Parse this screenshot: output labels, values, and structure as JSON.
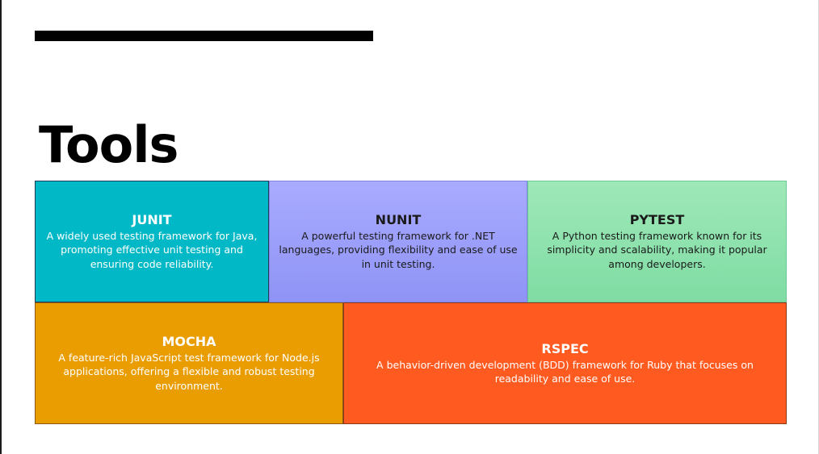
{
  "slide": {
    "title": "Tools"
  },
  "cards": [
    {
      "title": "JUNIT",
      "description": "A widely used testing framework for Java, promoting effective unit testing and ensuring code reliability.",
      "color": "#00b8c6"
    },
    {
      "title": "NUNIT",
      "description": "A powerful testing framework for .NET languages, providing flexibility and ease of use in unit testing.",
      "color": "#a9abff"
    },
    {
      "title": "PYTEST",
      "description": "A Python testing framework known for its simplicity and scalability, making it popular among developers.",
      "color": "#9fe8b8"
    },
    {
      "title": "MOCHA",
      "description": "A feature-rich JavaScript test framework for Node.js applications, offering a flexible and robust testing environment.",
      "color": "#e99d00"
    },
    {
      "title": "RSPEC",
      "description": "A behavior-driven development (BDD) framework for Ruby that focuses on readability and ease of use.",
      "color": "#ff5a1f"
    }
  ]
}
